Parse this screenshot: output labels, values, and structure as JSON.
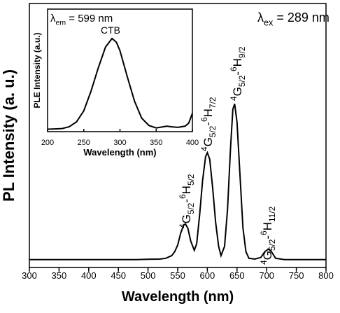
{
  "chart_data": [
    {
      "type": "line",
      "xlabel": "Wavelength (nm)",
      "ylabel": "PL Intensity (a. u.)",
      "x": [
        300,
        320,
        340,
        360,
        380,
        400,
        420,
        440,
        460,
        480,
        500,
        520,
        530,
        540,
        545,
        550,
        555,
        560,
        563,
        567,
        572,
        578,
        582,
        587,
        592,
        597,
        600,
        604,
        609,
        614,
        619,
        623,
        629,
        634,
        639,
        643,
        646,
        650,
        655,
        660,
        665,
        670,
        680,
        690,
        697,
        703,
        708,
        715,
        730,
        760,
        800
      ],
      "series": [
        {
          "color": "#000000",
          "values": [
            0.03,
            0.03,
            0.03,
            0.03,
            0.03,
            0.03,
            0.03,
            0.03,
            0.03,
            0.03,
            0.031,
            0.032,
            0.035,
            0.045,
            0.06,
            0.085,
            0.13,
            0.16,
            0.165,
            0.15,
            0.1,
            0.065,
            0.09,
            0.2,
            0.33,
            0.42,
            0.435,
            0.41,
            0.3,
            0.17,
            0.08,
            0.045,
            0.08,
            0.22,
            0.45,
            0.6,
            0.62,
            0.55,
            0.35,
            0.15,
            0.06,
            0.035,
            0.032,
            0.038,
            0.06,
            0.07,
            0.06,
            0.035,
            0.03,
            0.03,
            0.03
          ]
        }
      ],
      "xlim": [
        300,
        800
      ],
      "xticks": [
        300,
        350,
        400,
        450,
        500,
        550,
        600,
        650,
        700,
        750,
        800
      ],
      "ylim": [
        0,
        1
      ],
      "excitation_label": [
        {
          "text": "λ",
          "style": "normal"
        },
        {
          "text": "ex",
          "style": "sub"
        },
        {
          "text": " = 289 nm",
          "style": "normal"
        }
      ],
      "annotations": [
        [
          {
            "text": "4",
            "style": "sup"
          },
          {
            "text": "G",
            "style": "normal"
          },
          {
            "text": "5/2",
            "style": "sub"
          },
          {
            "text": "-",
            "style": "normal"
          },
          {
            "text": "6",
            "style": "sup"
          },
          {
            "text": "H",
            "style": "normal"
          },
          {
            "text": "5/2",
            "style": "sub"
          }
        ],
        [
          {
            "text": "4",
            "style": "sup"
          },
          {
            "text": "G",
            "style": "normal"
          },
          {
            "text": "5/2",
            "style": "sub"
          },
          {
            "text": "-",
            "style": "normal"
          },
          {
            "text": "6",
            "style": "sup"
          },
          {
            "text": "H",
            "style": "normal"
          },
          {
            "text": "7/2",
            "style": "sub"
          }
        ],
        [
          {
            "text": "4",
            "style": "sup"
          },
          {
            "text": "G",
            "style": "normal"
          },
          {
            "text": "5/2",
            "style": "sub"
          },
          {
            "text": "-",
            "style": "normal"
          },
          {
            "text": "6",
            "style": "sup"
          },
          {
            "text": "H",
            "style": "normal"
          },
          {
            "text": "9/2",
            "style": "sub"
          }
        ],
        [
          {
            "text": "4",
            "style": "sup"
          },
          {
            "text": "G",
            "style": "normal"
          },
          {
            "text": "5/2",
            "style": "sub"
          },
          {
            "text": "-",
            "style": "normal"
          },
          {
            "text": "6",
            "style": "sup"
          },
          {
            "text": "H",
            "style": "normal"
          },
          {
            "text": "11/2",
            "style": "sub"
          }
        ]
      ]
    },
    {
      "type": "line",
      "xlabel": "Wavelength (nm)",
      "ylabel": "PLE Intensity (a.u.)",
      "title": [
        {
          "text": "λ",
          "style": "normal"
        },
        {
          "text": "em",
          "style": "sub"
        },
        {
          "text": " = 599 nm",
          "style": "normal"
        }
      ],
      "peak_label": "CTB",
      "x": [
        200,
        210,
        220,
        230,
        240,
        250,
        260,
        270,
        280,
        289,
        295,
        300,
        310,
        320,
        330,
        340,
        350,
        360,
        365,
        370,
        380,
        390,
        395,
        400
      ],
      "series": [
        {
          "color": "#000000",
          "values": [
            0.02,
            0.022,
            0.025,
            0.04,
            0.08,
            0.17,
            0.33,
            0.52,
            0.69,
            0.76,
            0.73,
            0.66,
            0.45,
            0.25,
            0.11,
            0.05,
            0.03,
            0.04,
            0.045,
            0.04,
            0.035,
            0.045,
            0.07,
            0.15
          ]
        }
      ],
      "xlim": [
        200,
        400
      ],
      "xticks": [
        200,
        250,
        300,
        350,
        400
      ],
      "ylim": [
        0,
        1
      ]
    }
  ]
}
